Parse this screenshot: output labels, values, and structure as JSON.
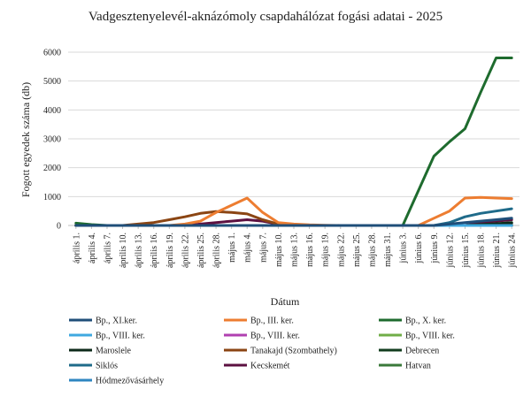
{
  "chart_data": {
    "type": "line",
    "title": "Vadgesztenyelevél-aknázómoly csapdahálózat fogási adatai - 2025",
    "xlabel": "Dátum",
    "ylabel": "Fogott egyedek száma (db)",
    "ylim": [
      0,
      6000
    ],
    "yticks": [
      "0",
      "1000",
      "2000",
      "3000",
      "4000",
      "5000",
      "6000"
    ],
    "grid": true,
    "legend_position": "bottom",
    "categories": [
      "április 1.",
      "április 4.",
      "április 7.",
      "április 10.",
      "április 13.",
      "április 16.",
      "április 19.",
      "április 22.",
      "április 25.",
      "április 28.",
      "május 1.",
      "május 4.",
      "május 7.",
      "május 10.",
      "május 13.",
      "május 16.",
      "május 19.",
      "május 22.",
      "május 25.",
      "május 28.",
      "május 31.",
      "június 3.",
      "június 6.",
      "június 9.",
      "június 12.",
      "június 15.",
      "június 18.",
      "június 21.",
      "június 24."
    ],
    "series": [
      {
        "name": "Bp., XI.ker.",
        "color": "#1f4e79",
        "values": [
          0,
          0,
          0,
          0,
          0,
          0,
          0,
          0,
          0,
          0,
          0,
          0,
          0,
          0,
          0,
          0,
          0,
          0,
          0,
          0,
          0,
          0,
          0,
          0,
          50,
          100,
          150,
          200,
          250
        ]
      },
      {
        "name": "Bp., III. ker.",
        "color": "#ed7d31",
        "values": [
          0,
          0,
          0,
          0,
          0,
          0,
          0,
          50,
          150,
          450,
          700,
          950,
          450,
          100,
          50,
          20,
          10,
          0,
          0,
          0,
          0,
          0,
          0,
          250,
          500,
          950,
          970,
          950,
          930
        ]
      },
      {
        "name": "Bp., X. ker.",
        "color": "#1e6b2e",
        "values": [
          80,
          30,
          0,
          0,
          0,
          0,
          0,
          0,
          0,
          0,
          0,
          0,
          0,
          0,
          0,
          0,
          0,
          0,
          0,
          0,
          0,
          0,
          1200,
          2400,
          2900,
          3350,
          4600,
          5800,
          5800
        ]
      },
      {
        "name": "Bp., VIII. ker.",
        "color": "#3fa9e0",
        "values": [
          0,
          0,
          0,
          0,
          0,
          0,
          0,
          0,
          0,
          0,
          0,
          0,
          0,
          0,
          0,
          0,
          0,
          0,
          0,
          0,
          0,
          0,
          0,
          0,
          0,
          0,
          0,
          0,
          0
        ]
      },
      {
        "name": "Bp., VIII. ker.",
        "color": "#b040b0",
        "values": [
          0,
          0,
          0,
          0,
          0,
          0,
          0,
          0,
          0,
          0,
          0,
          0,
          0,
          0,
          0,
          0,
          0,
          0,
          0,
          0,
          0,
          0,
          0,
          0,
          0,
          0,
          0,
          0,
          0
        ]
      },
      {
        "name": "Bp., VIII. ker.",
        "color": "#70ad47",
        "values": [
          0,
          0,
          0,
          0,
          0,
          0,
          0,
          0,
          0,
          0,
          0,
          0,
          0,
          0,
          0,
          0,
          0,
          0,
          0,
          0,
          0,
          0,
          0,
          0,
          0,
          0,
          0,
          0,
          0
        ]
      },
      {
        "name": "Maroslele",
        "color": "#0d2a1a",
        "values": [
          0,
          0,
          0,
          0,
          0,
          0,
          0,
          0,
          0,
          0,
          0,
          0,
          0,
          0,
          0,
          0,
          0,
          0,
          0,
          0,
          0,
          0,
          0,
          0,
          0,
          0,
          20,
          50,
          80
        ]
      },
      {
        "name": "Tanakajd (Szombathely)",
        "color": "#8b4513",
        "values": [
          0,
          0,
          0,
          0,
          50,
          100,
          200,
          300,
          420,
          480,
          450,
          400,
          200,
          50,
          20,
          0,
          0,
          0,
          0,
          0,
          0,
          0,
          0,
          0,
          0,
          0,
          0,
          0,
          0
        ]
      },
      {
        "name": "Debrecen",
        "color": "#123d1e",
        "values": [
          0,
          0,
          0,
          0,
          0,
          0,
          0,
          0,
          0,
          0,
          0,
          0,
          0,
          0,
          0,
          0,
          0,
          0,
          0,
          0,
          0,
          0,
          0,
          0,
          0,
          0,
          30,
          60,
          100
        ]
      },
      {
        "name": "Siklós",
        "color": "#1f6b8a",
        "values": [
          0,
          0,
          0,
          0,
          0,
          0,
          0,
          0,
          0,
          0,
          0,
          0,
          0,
          0,
          0,
          0,
          0,
          0,
          0,
          0,
          0,
          0,
          0,
          0,
          100,
          300,
          420,
          500,
          580
        ]
      },
      {
        "name": "Kecskemét",
        "color": "#5c1040",
        "values": [
          0,
          0,
          0,
          0,
          0,
          0,
          0,
          0,
          50,
          100,
          150,
          200,
          150,
          50,
          0,
          0,
          0,
          0,
          0,
          0,
          0,
          0,
          0,
          0,
          0,
          0,
          100,
          150,
          200
        ]
      },
      {
        "name": "Hatvan",
        "color": "#3a7a3a",
        "values": [
          0,
          0,
          0,
          0,
          0,
          0,
          0,
          0,
          0,
          0,
          0,
          0,
          0,
          0,
          0,
          0,
          0,
          0,
          0,
          0,
          0,
          0,
          0,
          0,
          0,
          0,
          0,
          0,
          0
        ]
      },
      {
        "name": "Hódmezővásárhely",
        "color": "#2e86c1",
        "values": [
          0,
          0,
          0,
          0,
          0,
          0,
          0,
          0,
          0,
          0,
          0,
          0,
          0,
          0,
          0,
          0,
          0,
          0,
          0,
          0,
          0,
          0,
          0,
          0,
          0,
          0,
          0,
          0,
          0
        ]
      }
    ]
  }
}
